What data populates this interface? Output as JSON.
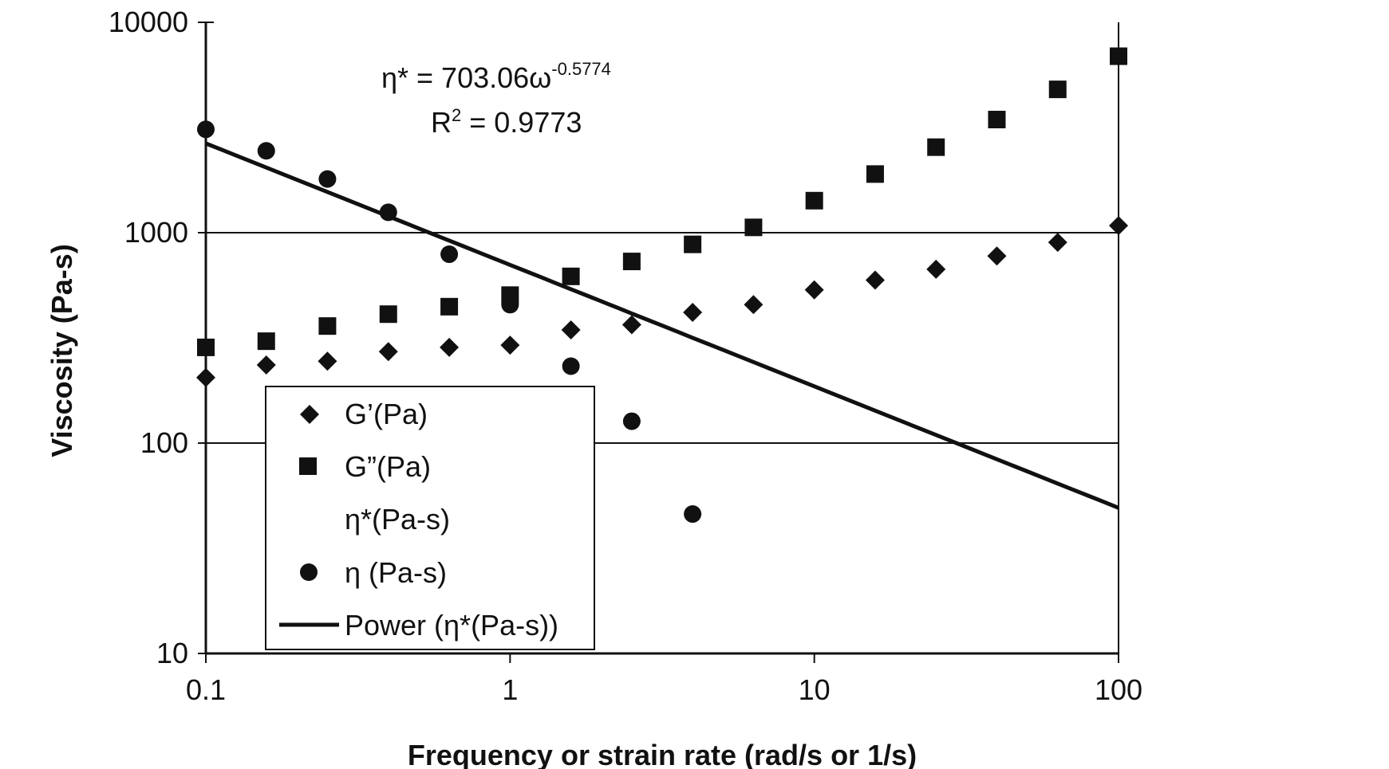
{
  "chart_data": {
    "type": "scatter",
    "xlabel": "Frequency or strain rate (rad/s or 1/s)",
    "ylabel": "Viscosity  (Pa-s)",
    "xscale": "log",
    "yscale": "log",
    "xlim": [
      0.1,
      100
    ],
    "ylim": [
      10,
      10000
    ],
    "x_ticks": [
      "0.1",
      "1",
      "10",
      "100"
    ],
    "y_ticks": [
      "10",
      "100",
      "1000",
      "10000"
    ],
    "grid": "horizontal major gridlines",
    "legend_position": "bottom-left inside plot",
    "annotation": {
      "equation_main": "η* = 703.06ω",
      "equation_exp": "-0.5774",
      "r2_main": "R",
      "r2_sup": "2",
      "r2_rest": " = 0.9773"
    },
    "series": [
      {
        "name": "G’(Pa)",
        "marker": "diamond",
        "x": [
          0.1,
          0.158,
          0.251,
          0.398,
          0.631,
          1.0,
          1.585,
          2.512,
          3.981,
          6.31,
          10.0,
          15.85,
          25.12,
          39.81,
          63.1,
          100.0
        ],
        "y": [
          205,
          235,
          245,
          272,
          285,
          292,
          345,
          365,
          418,
          455,
          535,
          595,
          670,
          775,
          900,
          1080
        ]
      },
      {
        "name": "G”(Pa)",
        "marker": "square",
        "x": [
          0.1,
          0.158,
          0.251,
          0.398,
          0.631,
          1.0,
          1.585,
          2.512,
          3.981,
          6.31,
          10.0,
          15.85,
          25.12,
          39.81,
          63.1,
          100.0
        ],
        "y": [
          285,
          305,
          360,
          410,
          445,
          505,
          620,
          730,
          880,
          1060,
          1420,
          1900,
          2550,
          3450,
          4800,
          6900
        ]
      },
      {
        "name": "η*(Pa-s)",
        "marker": "none",
        "x": [],
        "y": []
      },
      {
        "name": "η (Pa-s)",
        "marker": "circle",
        "x": [
          0.1,
          0.158,
          0.251,
          0.398,
          0.631,
          1.0,
          1.585,
          2.512,
          3.981
        ],
        "y": [
          3100,
          2450,
          1800,
          1250,
          790,
          455,
          232,
          127,
          46
        ]
      },
      {
        "name": "Power (η*(Pa-s))",
        "marker": "line",
        "fit": {
          "a": 703.06,
          "b": -0.5774
        }
      }
    ]
  }
}
